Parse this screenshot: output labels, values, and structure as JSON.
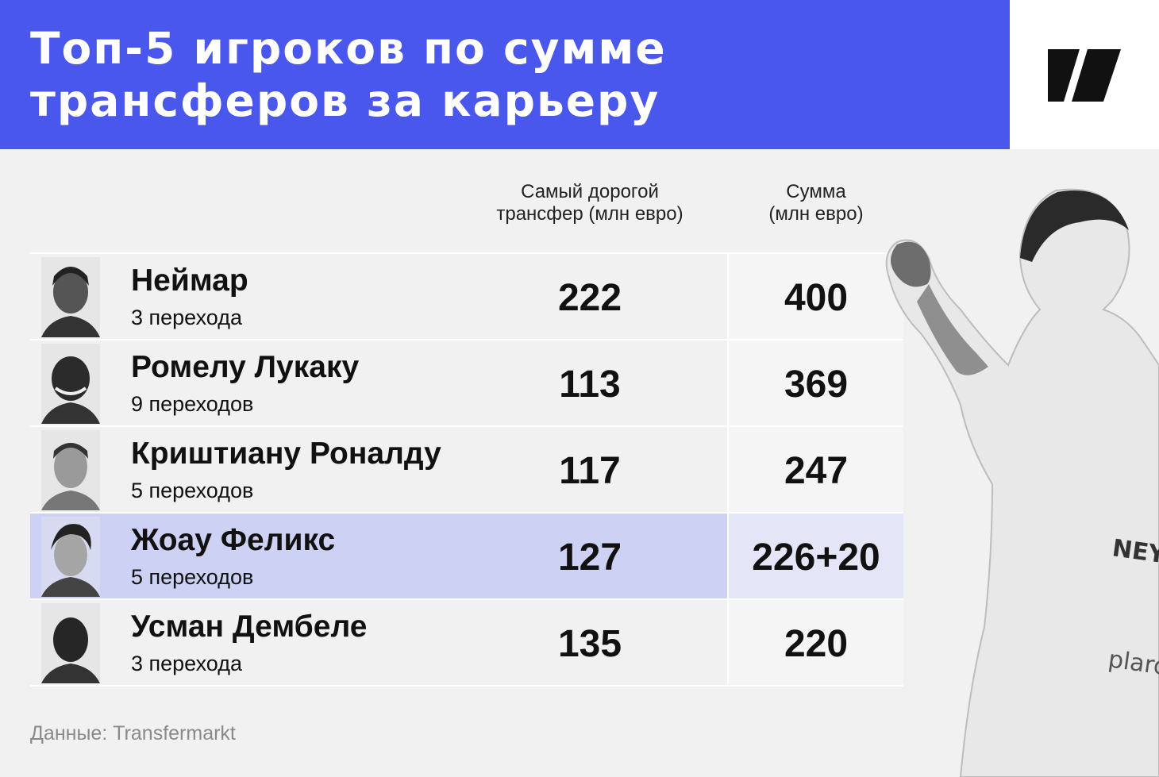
{
  "header": {
    "title": "Топ-5 игроков по сумме трансферов за карьеру",
    "logo": "media-logo"
  },
  "columns": {
    "top_line1": "Самый дорогой",
    "top_line2": "трансфер (млн евро)",
    "sum_line1": "Сумма",
    "sum_line2": "(млн евро)"
  },
  "source": "Данные: Transfermarkt",
  "colors": {
    "header_bg": "#4957ec",
    "highlight_row": "#cdd1f3",
    "background": "#f1f1f1"
  },
  "chart_data": {
    "type": "table",
    "title": "Топ-5 игроков по сумме трансферов за карьеру",
    "columns": [
      "Самый дорогой трансфер (млн евро)",
      "Сумма (млн евро)"
    ],
    "rows": [
      {
        "name": "Неймар",
        "transfers": "3 перехода",
        "top": "222",
        "sum": "400",
        "highlight": false
      },
      {
        "name": "Ромелу Лукаку",
        "transfers": "9 переходов",
        "top": "113",
        "sum": "369",
        "highlight": false
      },
      {
        "name": "Криштиану Роналду",
        "transfers": "5 переходов",
        "top": "117",
        "sum": "247",
        "highlight": false
      },
      {
        "name": "Жоау Феликс",
        "transfers": "5 переходов",
        "top": "127",
        "sum": "226+20",
        "highlight": true
      },
      {
        "name": "Усман Дембеле",
        "transfers": "3 перехода",
        "top": "135",
        "sum": "220",
        "highlight": false
      }
    ],
    "source": "Данные: Transfermarkt"
  }
}
